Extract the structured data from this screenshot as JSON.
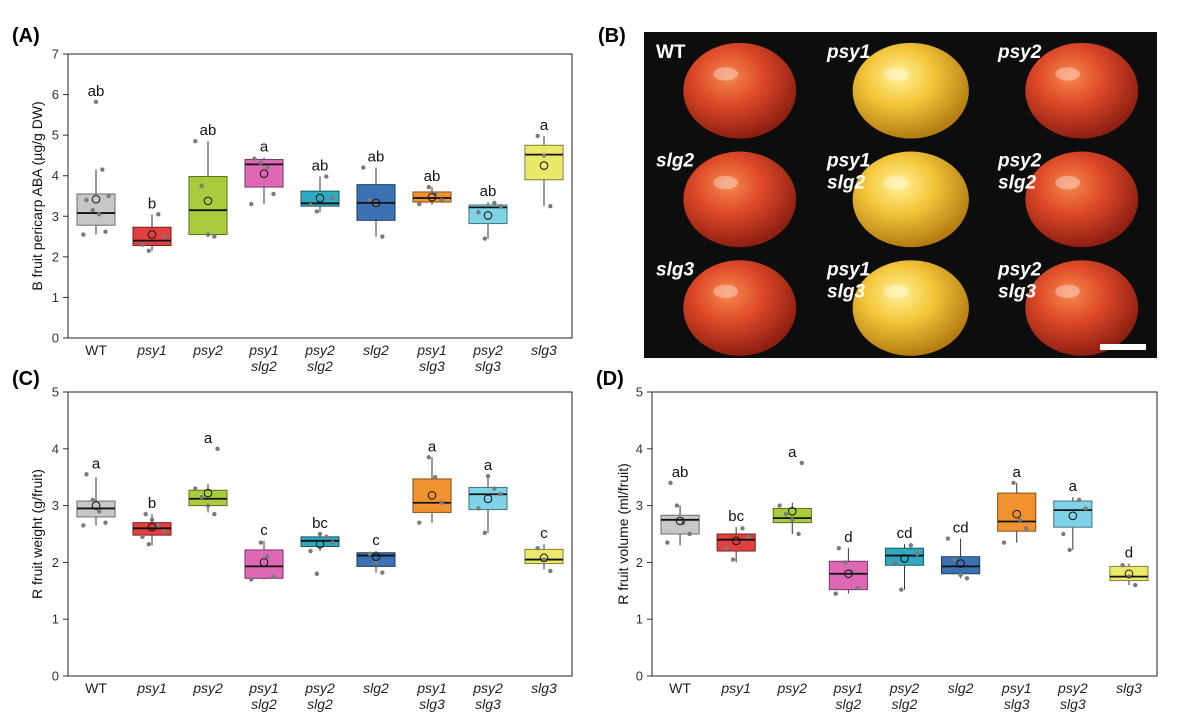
{
  "chart_data": [
    {
      "panel": "(A)",
      "type": "box",
      "ylabel": "B fruit pericarp ABA (µg/g DW)",
      "ylim": [
        0,
        7
      ],
      "yticks": [
        0,
        1,
        2,
        3,
        4,
        5,
        6,
        7
      ],
      "categories": [
        {
          "line1": "WT",
          "line2": ""
        },
        {
          "line1": "psy1",
          "line2": ""
        },
        {
          "line1": "psy2",
          "line2": ""
        },
        {
          "line1": "psy1",
          "line2": "slg2"
        },
        {
          "line1": "psy2",
          "line2": "slg2"
        },
        {
          "line1": "slg2",
          "line2": ""
        },
        {
          "line1": "psy1",
          "line2": "slg3"
        },
        {
          "line1": "psy2",
          "line2": "slg3"
        },
        {
          "line1": "slg3",
          "line2": ""
        }
      ],
      "boxes": [
        {
          "q1": 2.78,
          "median": 3.08,
          "q3": 3.55,
          "lo": 2.55,
          "hi": 4.15,
          "mean": 3.42,
          "sig": "ab",
          "color": "#c7c7c7",
          "points": [
            2.55,
            2.62,
            3.05,
            3.15,
            3.4,
            3.5,
            4.15,
            5.82
          ]
        },
        {
          "q1": 2.28,
          "median": 2.4,
          "q3": 2.73,
          "lo": 2.15,
          "hi": 3.05,
          "mean": 2.55,
          "sig": "b",
          "color": "#e0403f",
          "points": [
            2.15,
            2.3,
            2.5,
            3.05
          ]
        },
        {
          "q1": 2.55,
          "median": 3.15,
          "q3": 3.98,
          "lo": 2.5,
          "hi": 4.85,
          "mean": 3.38,
          "sig": "ab",
          "color": "#a8cc3c",
          "points": [
            2.5,
            2.55,
            3.75,
            4.85
          ]
        },
        {
          "q1": 3.72,
          "median": 4.28,
          "q3": 4.4,
          "lo": 3.3,
          "hi": 4.45,
          "mean": 4.05,
          "sig": "a",
          "color": "#df68b5",
          "points": [
            3.3,
            3.55,
            4.2,
            4.32,
            4.42
          ]
        },
        {
          "q1": 3.25,
          "median": 3.32,
          "q3": 3.62,
          "lo": 3.1,
          "hi": 3.98,
          "mean": 3.45,
          "sig": "ab",
          "color": "#2fa9bf",
          "points": [
            3.12,
            3.28,
            3.45,
            3.98
          ]
        },
        {
          "q1": 2.9,
          "median": 3.33,
          "q3": 3.78,
          "lo": 2.5,
          "hi": 4.2,
          "mean": 3.33,
          "sig": "ab",
          "color": "#3b72b3",
          "points": [
            2.5,
            3.25,
            3.4,
            4.2
          ]
        },
        {
          "q1": 3.35,
          "median": 3.45,
          "q3": 3.6,
          "lo": 3.28,
          "hi": 3.72,
          "mean": 3.47,
          "sig": "ab",
          "color": "#f0922f",
          "points": [
            3.3,
            3.4,
            3.55,
            3.72
          ]
        },
        {
          "q1": 2.82,
          "median": 3.22,
          "q3": 3.28,
          "lo": 2.45,
          "hi": 3.35,
          "mean": 3.02,
          "sig": "ab",
          "color": "#7fd3e6",
          "points": [
            2.45,
            3.1,
            3.25,
            3.33
          ]
        },
        {
          "q1": 3.9,
          "median": 4.52,
          "q3": 4.75,
          "lo": 3.25,
          "hi": 4.98,
          "mean": 4.25,
          "sig": "a",
          "color": "#ebe96a",
          "points": [
            3.25,
            4.5,
            4.98
          ]
        }
      ]
    },
    {
      "panel": "(C)",
      "type": "box",
      "ylabel": "R fruit weight (g/fruit)",
      "ylim": [
        0,
        5
      ],
      "yticks": [
        0,
        1,
        2,
        3,
        4,
        5
      ],
      "categories": [
        {
          "line1": "WT",
          "line2": ""
        },
        {
          "line1": "psy1",
          "line2": ""
        },
        {
          "line1": "psy2",
          "line2": ""
        },
        {
          "line1": "psy1",
          "line2": "slg2"
        },
        {
          "line1": "psy2",
          "line2": "slg2"
        },
        {
          "line1": "slg2",
          "line2": ""
        },
        {
          "line1": "psy1",
          "line2": "slg3"
        },
        {
          "line1": "psy2",
          "line2": "slg3"
        },
        {
          "line1": "slg3",
          "line2": ""
        }
      ],
      "boxes": [
        {
          "q1": 2.8,
          "median": 2.95,
          "q3": 3.08,
          "lo": 2.65,
          "hi": 3.5,
          "mean": 3.0,
          "sig": "a",
          "color": "#c7c7c7",
          "points": [
            2.65,
            2.7,
            2.9,
            3.1,
            3.55
          ]
        },
        {
          "q1": 2.48,
          "median": 2.6,
          "q3": 2.7,
          "lo": 2.3,
          "hi": 2.85,
          "mean": 2.62,
          "sig": "b",
          "color": "#e0403f",
          "points": [
            2.32,
            2.45,
            2.55,
            2.65,
            2.75,
            2.85
          ]
        },
        {
          "q1": 3.0,
          "median": 3.12,
          "q3": 3.27,
          "lo": 2.88,
          "hi": 3.38,
          "mean": 3.22,
          "sig": "a",
          "color": "#a8cc3c",
          "points": [
            2.85,
            3.0,
            3.15,
            3.3,
            4.0
          ]
        },
        {
          "q1": 1.72,
          "median": 1.93,
          "q3": 2.22,
          "lo": 1.7,
          "hi": 2.38,
          "mean": 2.0,
          "sig": "c",
          "color": "#df68b5",
          "points": [
            1.7,
            1.75,
            2.1,
            2.35
          ]
        },
        {
          "q1": 2.28,
          "median": 2.38,
          "q3": 2.45,
          "lo": 2.2,
          "hi": 2.5,
          "mean": 2.32,
          "sig": "bc",
          "color": "#2fa9bf",
          "points": [
            1.8,
            2.2,
            2.35,
            2.45,
            2.5
          ]
        },
        {
          "q1": 1.93,
          "median": 2.12,
          "q3": 2.17,
          "lo": 1.82,
          "hi": 2.2,
          "mean": 2.1,
          "sig": "c",
          "color": "#3b72b3",
          "points": [
            1.82,
            2.0,
            2.15
          ]
        },
        {
          "q1": 2.88,
          "median": 3.05,
          "q3": 3.47,
          "lo": 2.7,
          "hi": 3.85,
          "mean": 3.18,
          "sig": "a",
          "color": "#f0922f",
          "points": [
            2.7,
            3.05,
            3.5,
            3.85
          ]
        },
        {
          "q1": 2.93,
          "median": 3.2,
          "q3": 3.32,
          "lo": 2.52,
          "hi": 3.52,
          "mean": 3.12,
          "sig": "a",
          "color": "#7fd3e6",
          "points": [
            2.52,
            2.95,
            3.2,
            3.3,
            3.52
          ]
        },
        {
          "q1": 1.98,
          "median": 2.05,
          "q3": 2.23,
          "lo": 1.88,
          "hi": 2.32,
          "mean": 2.08,
          "sig": "c",
          "color": "#ebe96a",
          "points": [
            1.85,
            2.05,
            2.25
          ]
        }
      ]
    },
    {
      "panel": "(D)",
      "type": "box",
      "ylabel": "R fruit volume (ml/fruit)",
      "ylim": [
        0,
        5
      ],
      "yticks": [
        0,
        1,
        2,
        3,
        4,
        5
      ],
      "categories": [
        {
          "line1": "WT",
          "line2": ""
        },
        {
          "line1": "psy1",
          "line2": ""
        },
        {
          "line1": "psy2",
          "line2": ""
        },
        {
          "line1": "psy1",
          "line2": "slg2"
        },
        {
          "line1": "psy2",
          "line2": "slg2"
        },
        {
          "line1": "slg2",
          "line2": ""
        },
        {
          "line1": "psy1",
          "line2": "slg3"
        },
        {
          "line1": "psy2",
          "line2": "slg3"
        },
        {
          "line1": "slg3",
          "line2": ""
        }
      ],
      "boxes": [
        {
          "q1": 2.5,
          "median": 2.75,
          "q3": 2.83,
          "lo": 2.3,
          "hi": 3.0,
          "mean": 2.73,
          "sig": "ab",
          "color": "#c7c7c7",
          "points": [
            2.35,
            2.5,
            2.7,
            3.0,
            3.4
          ]
        },
        {
          "q1": 2.2,
          "median": 2.4,
          "q3": 2.5,
          "lo": 2.0,
          "hi": 2.62,
          "mean": 2.38,
          "sig": "bc",
          "color": "#e0403f",
          "points": [
            2.05,
            2.25,
            2.45,
            2.6
          ]
        },
        {
          "q1": 2.7,
          "median": 2.78,
          "q3": 2.95,
          "lo": 2.5,
          "hi": 3.05,
          "mean": 2.9,
          "sig": "a",
          "color": "#a8cc3c",
          "points": [
            2.5,
            2.75,
            2.85,
            3.0,
            3.75
          ]
        },
        {
          "q1": 1.52,
          "median": 1.8,
          "q3": 2.02,
          "lo": 1.45,
          "hi": 2.25,
          "mean": 1.8,
          "sig": "d",
          "color": "#df68b5",
          "points": [
            1.45,
            1.55,
            1.85,
            2.0,
            2.25
          ]
        },
        {
          "q1": 1.95,
          "median": 2.12,
          "q3": 2.25,
          "lo": 1.52,
          "hi": 2.32,
          "mean": 2.07,
          "sig": "cd",
          "color": "#2fa9bf",
          "points": [
            1.52,
            2.0,
            2.15,
            2.3
          ]
        },
        {
          "q1": 1.8,
          "median": 1.93,
          "q3": 2.1,
          "lo": 1.72,
          "hi": 2.42,
          "mean": 1.98,
          "sig": "cd",
          "color": "#3b72b3",
          "points": [
            1.72,
            1.78,
            2.05,
            2.42
          ]
        },
        {
          "q1": 2.55,
          "median": 2.72,
          "q3": 3.22,
          "lo": 2.35,
          "hi": 3.4,
          "mean": 2.85,
          "sig": "a",
          "color": "#f0922f",
          "points": [
            2.35,
            2.6,
            2.75,
            3.4
          ]
        },
        {
          "q1": 2.62,
          "median": 2.92,
          "q3": 3.08,
          "lo": 2.22,
          "hi": 3.15,
          "mean": 2.82,
          "sig": "a",
          "color": "#7fd3e6",
          "points": [
            2.22,
            2.5,
            2.95,
            3.1
          ]
        },
        {
          "q1": 1.68,
          "median": 1.75,
          "q3": 1.93,
          "lo": 1.6,
          "hi": 1.98,
          "mean": 1.8,
          "sig": "d",
          "color": "#ebe96a",
          "points": [
            1.6,
            1.75,
            1.95
          ]
        }
      ]
    }
  ],
  "photo": {
    "panel": "(B)",
    "background": "#0d0d0d",
    "fruits": [
      {
        "label": "WT",
        "color": "red"
      },
      {
        "label": "psy1",
        "color": "yellow"
      },
      {
        "label": "psy2",
        "color": "red"
      },
      {
        "label": "slg2",
        "color": "red"
      },
      {
        "label": "psy1 slg2",
        "color": "yellow"
      },
      {
        "label": "psy2 slg2",
        "color": "red"
      },
      {
        "label": "slg3",
        "color": "red"
      },
      {
        "label": "psy1 slg3",
        "color": "yellow"
      },
      {
        "label": "psy2 slg3",
        "color": "red"
      }
    ]
  }
}
